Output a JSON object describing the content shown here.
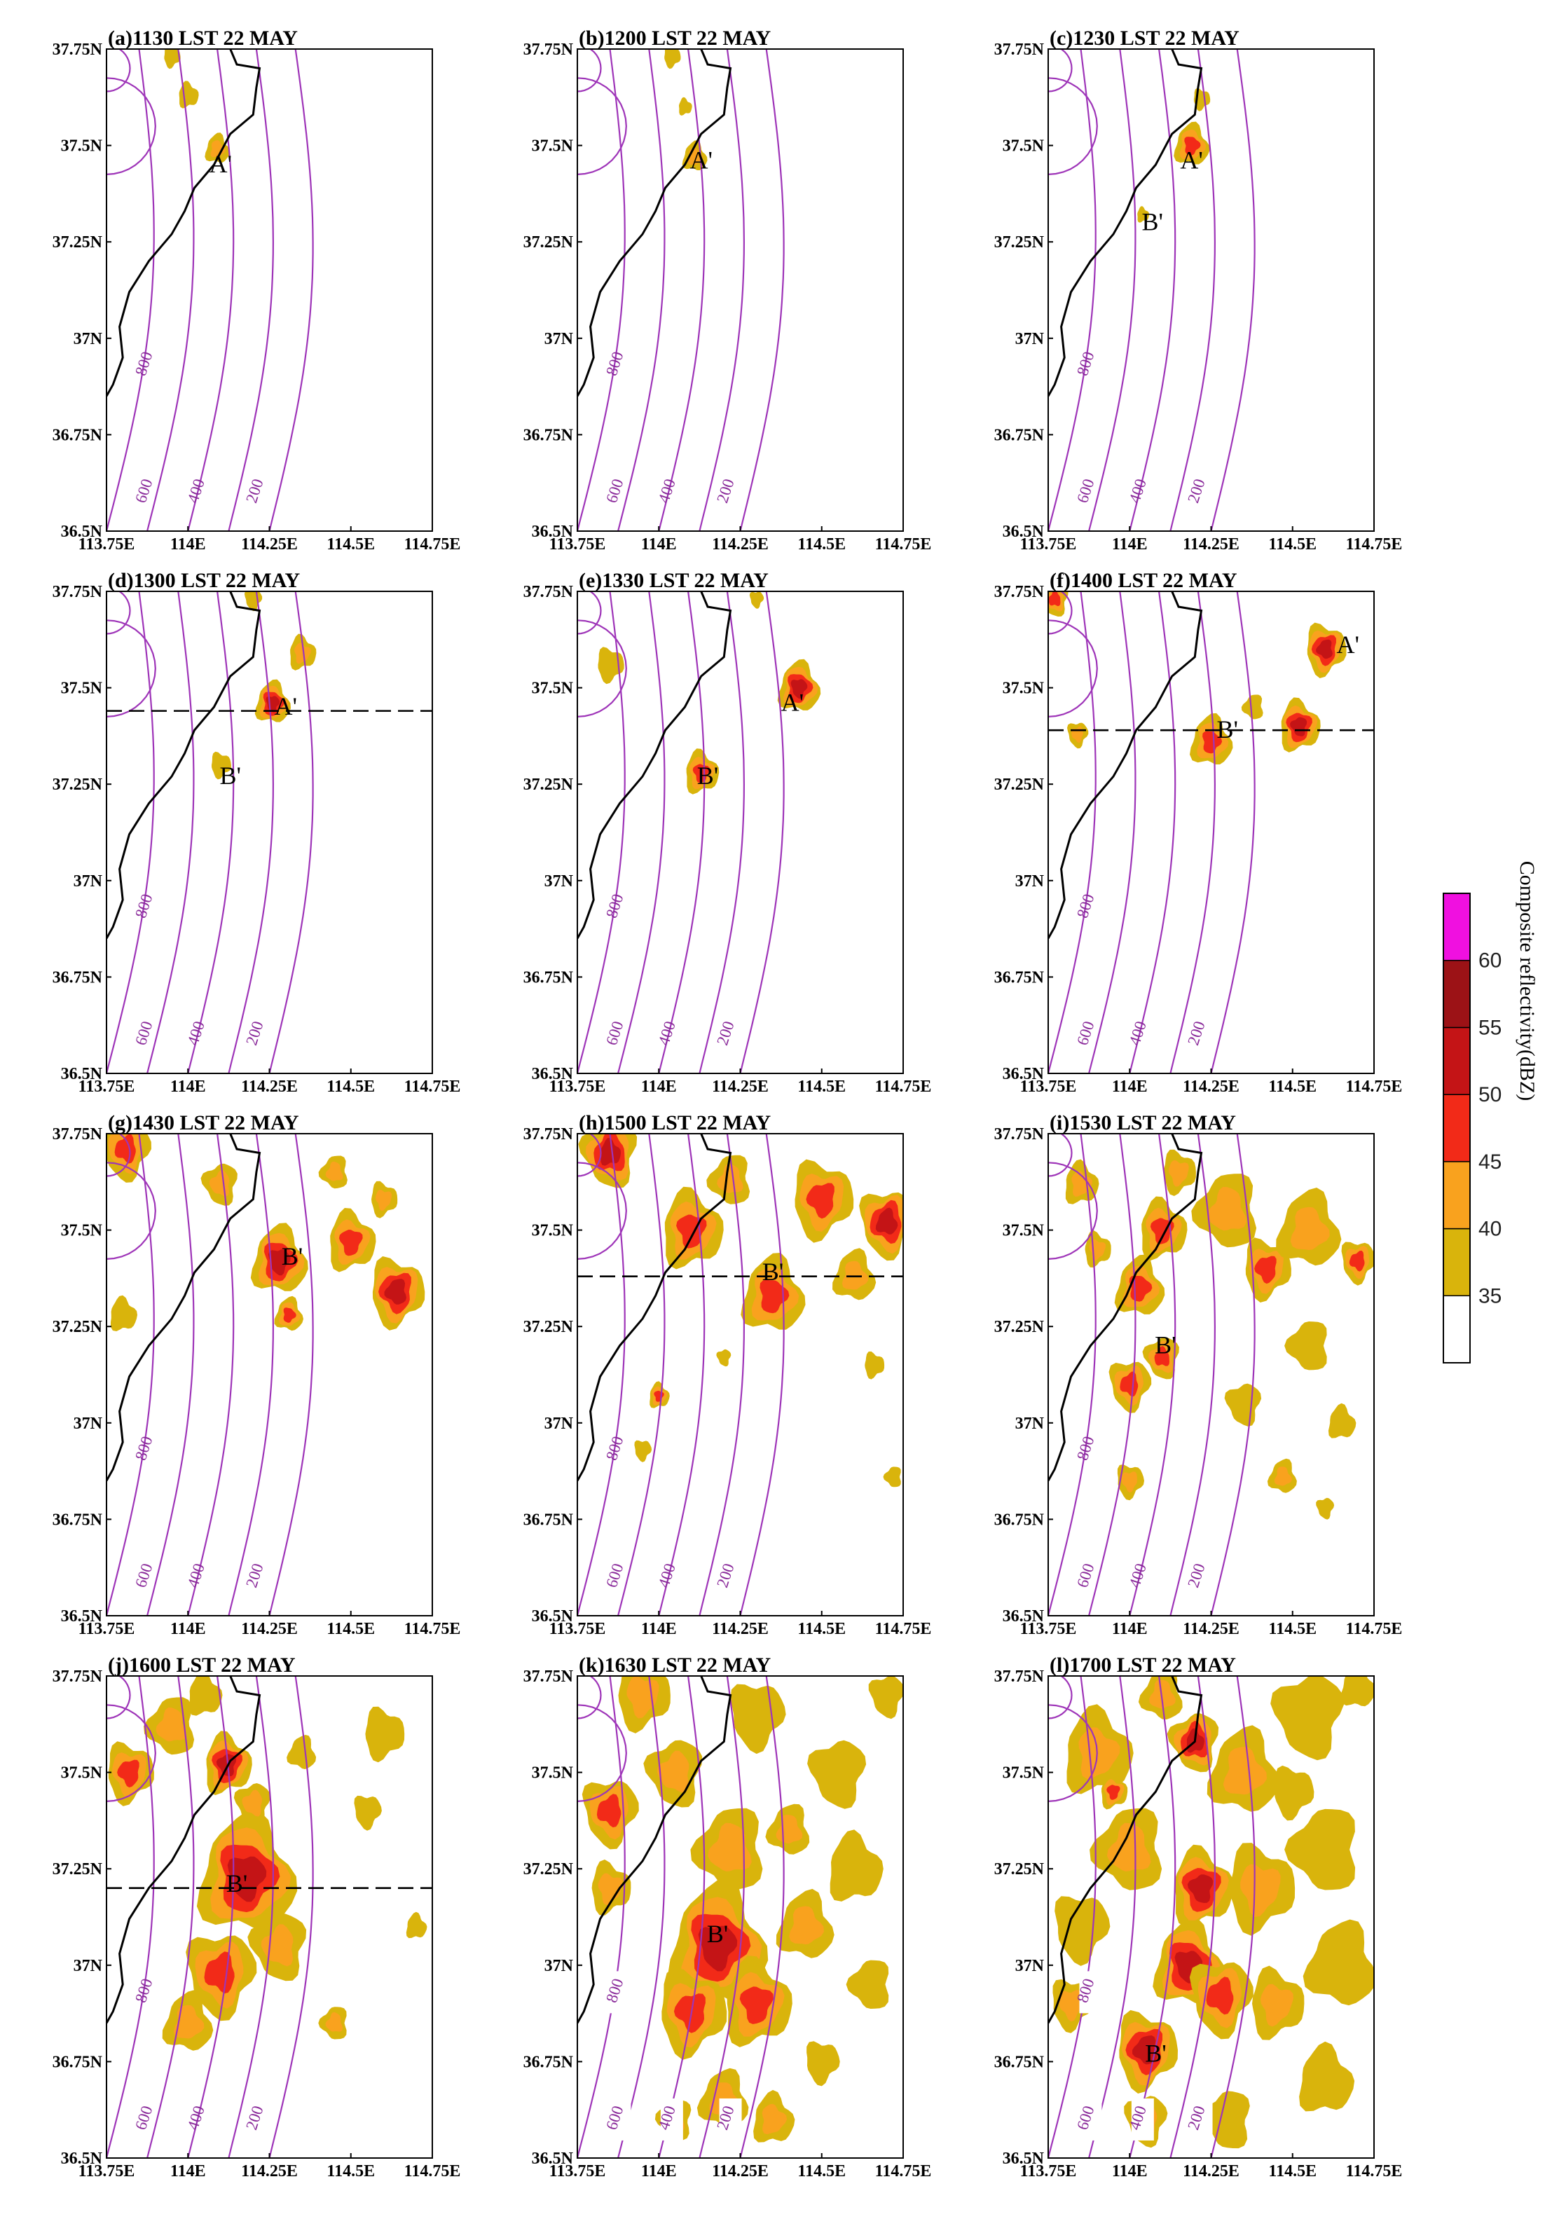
{
  "chart_data": {
    "type": "contour-map",
    "figure": "Composite reflectivity with pressure contours, 22 MAY",
    "xlim": [
      113.75,
      114.75
    ],
    "ylim": [
      36.5,
      37.75
    ],
    "x_ticks": [
      113.75,
      114.0,
      114.25,
      114.5,
      114.75
    ],
    "y_ticks": [
      36.5,
      36.75,
      37.0,
      37.25,
      37.5,
      37.75
    ],
    "x_tick_labels": [
      "113.75E",
      "114E",
      "114.25E",
      "114.5E",
      "114.75E"
    ],
    "y_tick_labels": [
      "36.5N",
      "36.75N",
      "37N",
      "37.25N",
      "37.5N",
      "37.75N"
    ],
    "contour_levels": [
      "800",
      "600",
      "400",
      "200"
    ],
    "colorbar": {
      "title": "Composite reflectivity(dBZ)",
      "levels": [
        "35",
        "40",
        "45",
        "50",
        "55",
        "60"
      ],
      "colors": [
        "#ffffff",
        "#d9b40c",
        "#f9a21e",
        "#f22a18",
        "#c41416",
        "#9c1216",
        "#f010e0"
      ]
    },
    "colors": {
      "contour": "#9e34b8",
      "coast": "#000000",
      "section_line": "#000000"
    },
    "panels": [
      {
        "title": "(a)1130 LST 22 MAY",
        "cells": [
          {
            "lon": 114.09,
            "lat": 37.49,
            "r": 0.035,
            "peak": 42
          },
          {
            "lon": 114.0,
            "lat": 37.63,
            "r": 0.03,
            "peak": 38
          },
          {
            "lon": 113.95,
            "lat": 37.73,
            "r": 0.025,
            "peak": 38
          }
        ],
        "labels": [
          {
            "text": "A'",
            "lon": 114.1,
            "lat": 37.43
          }
        ],
        "section_lat": null
      },
      {
        "title": "(b)1200 LST 22 MAY",
        "cells": [
          {
            "lon": 114.11,
            "lat": 37.47,
            "r": 0.035,
            "peak": 43
          },
          {
            "lon": 114.08,
            "lat": 37.6,
            "r": 0.02,
            "peak": 37
          },
          {
            "lon": 114.04,
            "lat": 37.73,
            "r": 0.025,
            "peak": 37
          }
        ],
        "labels": [
          {
            "text": "A'",
            "lon": 114.13,
            "lat": 37.44
          }
        ],
        "section_lat": null
      },
      {
        "title": "(c)1230 LST 22 MAY",
        "cells": [
          {
            "lon": 114.19,
            "lat": 37.5,
            "r": 0.05,
            "peak": 50
          },
          {
            "lon": 114.04,
            "lat": 37.32,
            "r": 0.018,
            "peak": 37
          },
          {
            "lon": 114.22,
            "lat": 37.62,
            "r": 0.025,
            "peak": 40
          }
        ],
        "labels": [
          {
            "text": "A'",
            "lon": 114.19,
            "lat": 37.44
          },
          {
            "text": "B'",
            "lon": 114.07,
            "lat": 37.28
          }
        ],
        "section_lat": null
      },
      {
        "title": "(d)1300 LST 22 MAY",
        "cells": [
          {
            "lon": 114.26,
            "lat": 37.46,
            "r": 0.05,
            "peak": 52
          },
          {
            "lon": 114.35,
            "lat": 37.59,
            "r": 0.04,
            "peak": 42
          },
          {
            "lon": 114.1,
            "lat": 37.3,
            "r": 0.03,
            "peak": 40
          },
          {
            "lon": 114.2,
            "lat": 37.73,
            "r": 0.025,
            "peak": 40
          }
        ],
        "labels": [
          {
            "text": "A'",
            "lon": 114.3,
            "lat": 37.43
          },
          {
            "text": "B'",
            "lon": 114.13,
            "lat": 37.25
          }
        ],
        "section_lat": 37.44
      },
      {
        "title": "(e)1330 LST 22 MAY",
        "cells": [
          {
            "lon": 114.43,
            "lat": 37.5,
            "r": 0.06,
            "peak": 52
          },
          {
            "lon": 114.13,
            "lat": 37.28,
            "r": 0.05,
            "peak": 47
          },
          {
            "lon": 113.85,
            "lat": 37.56,
            "r": 0.04,
            "peak": 38
          },
          {
            "lon": 114.3,
            "lat": 37.73,
            "r": 0.02,
            "peak": 37
          }
        ],
        "labels": [
          {
            "text": "A'",
            "lon": 114.41,
            "lat": 37.44
          },
          {
            "text": "B'",
            "lon": 114.15,
            "lat": 37.25
          }
        ],
        "section_lat": null
      },
      {
        "title": "(f)1400 LST 22 MAY",
        "cells": [
          {
            "lon": 114.25,
            "lat": 37.36,
            "r": 0.06,
            "peak": 50
          },
          {
            "lon": 114.52,
            "lat": 37.4,
            "r": 0.06,
            "peak": 52
          },
          {
            "lon": 114.6,
            "lat": 37.6,
            "r": 0.06,
            "peak": 52
          },
          {
            "lon": 113.84,
            "lat": 37.38,
            "r": 0.03,
            "peak": 42
          },
          {
            "lon": 113.77,
            "lat": 37.73,
            "r": 0.04,
            "peak": 47
          },
          {
            "lon": 114.38,
            "lat": 37.45,
            "r": 0.03,
            "peak": 40
          }
        ],
        "labels": [
          {
            "text": "B'",
            "lon": 114.3,
            "lat": 37.37
          },
          {
            "text": "A'",
            "lon": 114.67,
            "lat": 37.59
          }
        ],
        "section_lat": 37.39
      },
      {
        "title": "(g)1430 LST 22 MAY",
        "cells": [
          {
            "lon": 114.28,
            "lat": 37.42,
            "r": 0.08,
            "peak": 52
          },
          {
            "lon": 114.5,
            "lat": 37.47,
            "r": 0.07,
            "peak": 50
          },
          {
            "lon": 114.64,
            "lat": 37.34,
            "r": 0.08,
            "peak": 55
          },
          {
            "lon": 113.81,
            "lat": 37.71,
            "r": 0.07,
            "peak": 50
          },
          {
            "lon": 114.1,
            "lat": 37.62,
            "r": 0.05,
            "peak": 42
          },
          {
            "lon": 114.45,
            "lat": 37.65,
            "r": 0.04,
            "peak": 42
          },
          {
            "lon": 114.31,
            "lat": 37.28,
            "r": 0.04,
            "peak": 47
          },
          {
            "lon": 113.8,
            "lat": 37.28,
            "r": 0.04,
            "peak": 38
          },
          {
            "lon": 114.6,
            "lat": 37.58,
            "r": 0.04,
            "peak": 42
          }
        ],
        "labels": [
          {
            "text": "B'",
            "lon": 114.32,
            "lat": 37.41
          }
        ],
        "section_lat": null
      },
      {
        "title": "(h)1500 LST 22 MAY",
        "cells": [
          {
            "lon": 114.35,
            "lat": 37.33,
            "r": 0.09,
            "peak": 50
          },
          {
            "lon": 114.1,
            "lat": 37.5,
            "r": 0.09,
            "peak": 47
          },
          {
            "lon": 114.5,
            "lat": 37.58,
            "r": 0.09,
            "peak": 48
          },
          {
            "lon": 114.7,
            "lat": 37.52,
            "r": 0.08,
            "peak": 55
          },
          {
            "lon": 113.85,
            "lat": 37.7,
            "r": 0.08,
            "peak": 52
          },
          {
            "lon": 114.22,
            "lat": 37.63,
            "r": 0.06,
            "peak": 45
          },
          {
            "lon": 114.6,
            "lat": 37.38,
            "r": 0.06,
            "peak": 45
          },
          {
            "lon": 114.0,
            "lat": 37.07,
            "r": 0.03,
            "peak": 47
          },
          {
            "lon": 114.66,
            "lat": 37.15,
            "r": 0.03,
            "peak": 38
          },
          {
            "lon": 113.95,
            "lat": 36.93,
            "r": 0.025,
            "peak": 38
          },
          {
            "lon": 114.2,
            "lat": 37.17,
            "r": 0.02,
            "peak": 37
          },
          {
            "lon": 114.72,
            "lat": 36.86,
            "r": 0.025,
            "peak": 38
          }
        ],
        "labels": [
          {
            "text": "B'",
            "lon": 114.35,
            "lat": 37.37
          }
        ],
        "section_lat": 37.38
      },
      {
        "title": "(i)1530 LST 22 MAY",
        "cells": [
          {
            "lon": 114.03,
            "lat": 37.35,
            "r": 0.07,
            "peak": 50
          },
          {
            "lon": 114.1,
            "lat": 37.5,
            "r": 0.07,
            "peak": 48
          },
          {
            "lon": 114.42,
            "lat": 37.4,
            "r": 0.07,
            "peak": 50
          },
          {
            "lon": 114.0,
            "lat": 37.1,
            "r": 0.06,
            "peak": 50
          },
          {
            "lon": 114.1,
            "lat": 37.17,
            "r": 0.05,
            "peak": 47
          },
          {
            "lon": 114.3,
            "lat": 37.55,
            "r": 0.09,
            "peak": 42
          },
          {
            "lon": 114.55,
            "lat": 37.5,
            "r": 0.09,
            "peak": 42
          },
          {
            "lon": 113.85,
            "lat": 37.62,
            "r": 0.05,
            "peak": 42
          },
          {
            "lon": 114.15,
            "lat": 37.65,
            "r": 0.05,
            "peak": 45
          },
          {
            "lon": 114.7,
            "lat": 37.42,
            "r": 0.05,
            "peak": 48
          },
          {
            "lon": 114.35,
            "lat": 37.05,
            "r": 0.05,
            "peak": 40
          },
          {
            "lon": 114.55,
            "lat": 37.2,
            "r": 0.06,
            "peak": 40
          },
          {
            "lon": 114.47,
            "lat": 36.86,
            "r": 0.04,
            "peak": 45
          },
          {
            "lon": 114.65,
            "lat": 37.0,
            "r": 0.04,
            "peak": 38
          },
          {
            "lon": 113.9,
            "lat": 37.45,
            "r": 0.04,
            "peak": 42
          },
          {
            "lon": 114.0,
            "lat": 36.85,
            "r": 0.04,
            "peak": 45
          },
          {
            "lon": 114.6,
            "lat": 36.78,
            "r": 0.025,
            "peak": 38
          }
        ],
        "labels": [
          {
            "text": "B'",
            "lon": 114.11,
            "lat": 37.18
          }
        ],
        "section_lat": null
      },
      {
        "title": "(j)1600 LST 22 MAY",
        "cells": [
          {
            "lon": 114.18,
            "lat": 37.23,
            "r": 0.14,
            "peak": 55
          },
          {
            "lon": 114.12,
            "lat": 37.52,
            "r": 0.07,
            "peak": 52
          },
          {
            "lon": 113.82,
            "lat": 37.5,
            "r": 0.07,
            "peak": 50
          },
          {
            "lon": 114.1,
            "lat": 36.98,
            "r": 0.1,
            "peak": 47
          },
          {
            "lon": 114.28,
            "lat": 37.05,
            "r": 0.08,
            "peak": 42
          },
          {
            "lon": 113.95,
            "lat": 37.62,
            "r": 0.07,
            "peak": 42
          },
          {
            "lon": 114.0,
            "lat": 36.85,
            "r": 0.07,
            "peak": 45
          },
          {
            "lon": 114.05,
            "lat": 37.7,
            "r": 0.05,
            "peak": 40
          },
          {
            "lon": 114.6,
            "lat": 37.6,
            "r": 0.06,
            "peak": 38
          },
          {
            "lon": 114.55,
            "lat": 37.4,
            "r": 0.04,
            "peak": 38
          },
          {
            "lon": 114.2,
            "lat": 37.42,
            "r": 0.05,
            "peak": 45
          },
          {
            "lon": 114.45,
            "lat": 36.85,
            "r": 0.04,
            "peak": 42
          },
          {
            "lon": 114.35,
            "lat": 37.55,
            "r": 0.04,
            "peak": 38
          },
          {
            "lon": 114.7,
            "lat": 37.1,
            "r": 0.03,
            "peak": 38
          }
        ],
        "labels": [
          {
            "text": "B'",
            "lon": 114.15,
            "lat": 37.19
          }
        ],
        "section_lat": 37.2
      },
      {
        "title": "(k)1630 LST 22 MAY",
        "cells": [
          {
            "lon": 114.18,
            "lat": 37.05,
            "r": 0.14,
            "peak": 55
          },
          {
            "lon": 114.3,
            "lat": 36.9,
            "r": 0.1,
            "peak": 50
          },
          {
            "lon": 114.1,
            "lat": 36.88,
            "r": 0.1,
            "peak": 50
          },
          {
            "lon": 113.85,
            "lat": 37.4,
            "r": 0.08,
            "peak": 50
          },
          {
            "lon": 114.05,
            "lat": 37.5,
            "r": 0.08,
            "peak": 42
          },
          {
            "lon": 114.22,
            "lat": 37.3,
            "r": 0.1,
            "peak": 45
          },
          {
            "lon": 114.45,
            "lat": 37.1,
            "r": 0.08,
            "peak": 42
          },
          {
            "lon": 114.6,
            "lat": 37.25,
            "r": 0.08,
            "peak": 40
          },
          {
            "lon": 113.95,
            "lat": 37.7,
            "r": 0.08,
            "peak": 42
          },
          {
            "lon": 114.3,
            "lat": 37.65,
            "r": 0.08,
            "peak": 40
          },
          {
            "lon": 114.55,
            "lat": 37.5,
            "r": 0.08,
            "peak": 40
          },
          {
            "lon": 114.65,
            "lat": 36.95,
            "r": 0.06,
            "peak": 40
          },
          {
            "lon": 114.2,
            "lat": 36.65,
            "r": 0.07,
            "peak": 45
          },
          {
            "lon": 114.35,
            "lat": 36.6,
            "r": 0.06,
            "peak": 42
          },
          {
            "lon": 113.85,
            "lat": 37.2,
            "r": 0.06,
            "peak": 42
          },
          {
            "lon": 114.5,
            "lat": 36.75,
            "r": 0.05,
            "peak": 40
          },
          {
            "lon": 114.7,
            "lat": 37.7,
            "r": 0.05,
            "peak": 38
          },
          {
            "lon": 114.05,
            "lat": 36.6,
            "r": 0.05,
            "peak": 42
          },
          {
            "lon": 114.4,
            "lat": 37.35,
            "r": 0.06,
            "peak": 42
          }
        ],
        "labels": [
          {
            "text": "B'",
            "lon": 114.18,
            "lat": 37.06
          }
        ],
        "section_lat": null
      },
      {
        "title": "(l)1700 LST 22 MAY",
        "cells": [
          {
            "lon": 114.18,
            "lat": 37.0,
            "r": 0.1,
            "peak": 55
          },
          {
            "lon": 114.22,
            "lat": 37.2,
            "r": 0.09,
            "peak": 52
          },
          {
            "lon": 114.05,
            "lat": 36.78,
            "r": 0.09,
            "peak": 52
          },
          {
            "lon": 114.28,
            "lat": 36.92,
            "r": 0.09,
            "peak": 50
          },
          {
            "lon": 114.2,
            "lat": 37.58,
            "r": 0.07,
            "peak": 52
          },
          {
            "lon": 114.0,
            "lat": 37.3,
            "r": 0.1,
            "peak": 45
          },
          {
            "lon": 114.35,
            "lat": 37.5,
            "r": 0.1,
            "peak": 42
          },
          {
            "lon": 113.9,
            "lat": 37.55,
            "r": 0.1,
            "peak": 42
          },
          {
            "lon": 114.4,
            "lat": 37.2,
            "r": 0.1,
            "peak": 42
          },
          {
            "lon": 113.85,
            "lat": 37.1,
            "r": 0.08,
            "peak": 40
          },
          {
            "lon": 114.55,
            "lat": 37.65,
            "r": 0.1,
            "peak": 40
          },
          {
            "lon": 114.6,
            "lat": 37.3,
            "r": 0.1,
            "peak": 40
          },
          {
            "lon": 114.65,
            "lat": 37.0,
            "r": 0.1,
            "peak": 40
          },
          {
            "lon": 114.6,
            "lat": 36.7,
            "r": 0.08,
            "peak": 40
          },
          {
            "lon": 114.45,
            "lat": 36.9,
            "r": 0.08,
            "peak": 42
          },
          {
            "lon": 113.82,
            "lat": 36.9,
            "r": 0.06,
            "peak": 42
          },
          {
            "lon": 114.05,
            "lat": 36.6,
            "r": 0.06,
            "peak": 45
          },
          {
            "lon": 114.3,
            "lat": 36.6,
            "r": 0.07,
            "peak": 40
          },
          {
            "lon": 114.1,
            "lat": 37.7,
            "r": 0.06,
            "peak": 42
          },
          {
            "lon": 114.7,
            "lat": 37.72,
            "r": 0.05,
            "peak": 38
          },
          {
            "lon": 113.95,
            "lat": 37.45,
            "r": 0.04,
            "peak": 47
          },
          {
            "lon": 114.5,
            "lat": 37.45,
            "r": 0.06,
            "peak": 40
          }
        ],
        "labels": [
          {
            "text": "B'",
            "lon": 114.08,
            "lat": 36.75
          }
        ],
        "section_lat": null
      }
    ]
  }
}
